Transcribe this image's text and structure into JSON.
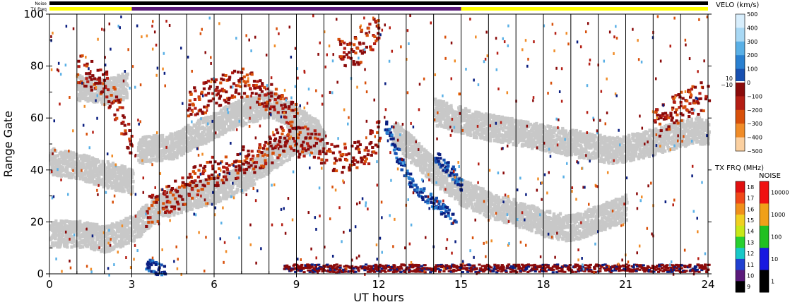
{
  "chart_data": {
    "type": "heatmap",
    "title": "",
    "xlabel": "UT hours",
    "ylabel": "Range Gate",
    "xlim": [
      0,
      24
    ],
    "ylim": [
      0,
      100
    ],
    "x_ticks": [
      "0",
      "3",
      "6",
      "9",
      "12",
      "15",
      "18",
      "21",
      "24"
    ],
    "y_ticks": [
      "0",
      "20",
      "40",
      "60",
      "80",
      "100"
    ],
    "grid_x_hours": [
      1,
      2,
      3,
      4,
      5,
      6,
      7,
      8,
      9,
      10,
      11,
      12,
      13,
      14,
      15,
      16,
      17,
      18,
      19,
      20,
      21,
      22,
      23
    ],
    "top_bars": {
      "noise_label": "Noise",
      "txfreq_label": "TX Freq",
      "noise_color": "#000000",
      "txfreq_segments": [
        {
          "from": 0,
          "to": 3,
          "color": "#ffff00"
        },
        {
          "from": 3,
          "to": 15,
          "color": "#5a1a7a"
        },
        {
          "from": 15,
          "to": 24,
          "color": "#ffff00"
        }
      ]
    },
    "velocity_scale": {
      "title": "VELO (km/s)",
      "labels": [
        "500",
        "400",
        "300",
        "200",
        "100",
        "0",
        "−100",
        "−200",
        "−300",
        "−400",
        "−500"
      ],
      "side_labels": [
        "10",
        "−10"
      ],
      "colors": [
        "#d8eefc",
        "#a8d8f4",
        "#5ab0e6",
        "#2a80d0",
        "#1850b0",
        "#0a1e80",
        "#8a0a0a",
        "#b41e14",
        "#d8500a",
        "#f08c28",
        "#fbd0a0"
      ]
    },
    "txfreq_scale": {
      "title": "TX FRQ (MHz)",
      "labels": [
        "18",
        "17",
        "16",
        "15",
        "14",
        "13",
        "12",
        "11",
        "10",
        "9"
      ],
      "colors": [
        "#e01010",
        "#f04818",
        "#f0901a",
        "#f0d020",
        "#c8e818",
        "#28d030",
        "#18c8c8",
        "#2040d0",
        "#5a1a7a",
        "#000000"
      ]
    },
    "noise_scale": {
      "title": "NOISE",
      "labels": [
        "10000",
        "1000",
        "100",
        "10",
        "1"
      ],
      "colors": [
        "#f01010",
        "#f0a018",
        "#20c020",
        "#1818e0",
        "#000000"
      ]
    },
    "ground_scatter_color": "#c8c8c8",
    "features": [
      {
        "name": "ground scatter band",
        "type": "ground",
        "points": [
          [
            0,
            16
          ],
          [
            1,
            16
          ],
          [
            2,
            14
          ],
          [
            3,
            18
          ],
          [
            4,
            27
          ],
          [
            5,
            30
          ],
          [
            6,
            33
          ],
          [
            7,
            37
          ],
          [
            8,
            45
          ],
          [
            9,
            52
          ],
          [
            10,
            52
          ]
        ]
      },
      {
        "name": "ground scatter band",
        "type": "ground",
        "points": [
          [
            0,
            44
          ],
          [
            1,
            42
          ],
          [
            2,
            39
          ],
          [
            3,
            36
          ]
        ]
      },
      {
        "name": "ground scatter band",
        "type": "ground",
        "points": [
          [
            1,
            72
          ],
          [
            2,
            71
          ],
          [
            2.8,
            73
          ]
        ]
      },
      {
        "name": "ground scatter band",
        "type": "ground",
        "points": [
          [
            3.2,
            48
          ],
          [
            4.5,
            50
          ],
          [
            6,
            58
          ],
          [
            7,
            63
          ],
          [
            8,
            66
          ],
          [
            9,
            60
          ],
          [
            9.8,
            54
          ]
        ]
      },
      {
        "name": "ground scatter band",
        "type": "ground",
        "points": [
          [
            12.5,
            55
          ],
          [
            13.5,
            45
          ],
          [
            14,
            40
          ],
          [
            15,
            32
          ],
          [
            16,
            27
          ],
          [
            17,
            24
          ],
          [
            18,
            20
          ],
          [
            19,
            18
          ],
          [
            20,
            22
          ],
          [
            21,
            26
          ]
        ]
      },
      {
        "name": "ground scatter band",
        "type": "ground",
        "points": [
          [
            14,
            63
          ],
          [
            15.5,
            58
          ],
          [
            17,
            55
          ],
          [
            18.5,
            52
          ],
          [
            19.5,
            50
          ],
          [
            20.5,
            48
          ],
          [
            21.5,
            50
          ],
          [
            22.5,
            53
          ],
          [
            23.5,
            56
          ],
          [
            24,
            55
          ]
        ]
      },
      {
        "name": "negative velocity scatter",
        "type": "neg",
        "points": [
          [
            3.5,
            24
          ],
          [
            4.5,
            30
          ],
          [
            5.5,
            38
          ],
          [
            6.5,
            42
          ],
          [
            7.5,
            45
          ],
          [
            8.5,
            52
          ],
          [
            9.5,
            51
          ],
          [
            10.5,
            45
          ],
          [
            11.5,
            47
          ],
          [
            12,
            55
          ]
        ]
      },
      {
        "name": "negative velocity scatter",
        "type": "neg",
        "points": [
          [
            5,
            66
          ],
          [
            6,
            70
          ],
          [
            7,
            74
          ],
          [
            8,
            68
          ],
          [
            9,
            60
          ]
        ]
      },
      {
        "name": "negative velocity scatter",
        "type": "neg",
        "points": [
          [
            1,
            80
          ],
          [
            2,
            74
          ],
          [
            3,
            49
          ]
        ]
      },
      {
        "name": "negative velocity scatter",
        "type": "neg",
        "points": [
          [
            10.5,
            88
          ],
          [
            11,
            85
          ],
          [
            12,
            95
          ]
        ]
      },
      {
        "name": "negative velocity scatter",
        "type": "neg",
        "points": [
          [
            22,
            58
          ],
          [
            23,
            65
          ],
          [
            24,
            70
          ]
        ]
      },
      {
        "name": "positive velocity scatter",
        "type": "pos",
        "points": [
          [
            12.2,
            58
          ],
          [
            12.6,
            48
          ],
          [
            13,
            38
          ],
          [
            13.5,
            32
          ],
          [
            14,
            28
          ],
          [
            14.8,
            20
          ]
        ]
      },
      {
        "name": "positive velocity scatter",
        "type": "pos",
        "points": [
          [
            14,
            46
          ],
          [
            14.6,
            40
          ],
          [
            15,
            34
          ]
        ]
      },
      {
        "name": "positive velocity scatter",
        "type": "pos",
        "points": [
          [
            3.5,
            4
          ],
          [
            4,
            2
          ],
          [
            4.2,
            1
          ]
        ]
      },
      {
        "name": "near range scatter",
        "type": "near",
        "points": [
          [
            8.5,
            1
          ],
          [
            10,
            1
          ],
          [
            12,
            1
          ],
          [
            14,
            1
          ],
          [
            16,
            1
          ],
          [
            18,
            1
          ],
          [
            20,
            1
          ],
          [
            22,
            1
          ],
          [
            24,
            1
          ]
        ]
      }
    ]
  }
}
